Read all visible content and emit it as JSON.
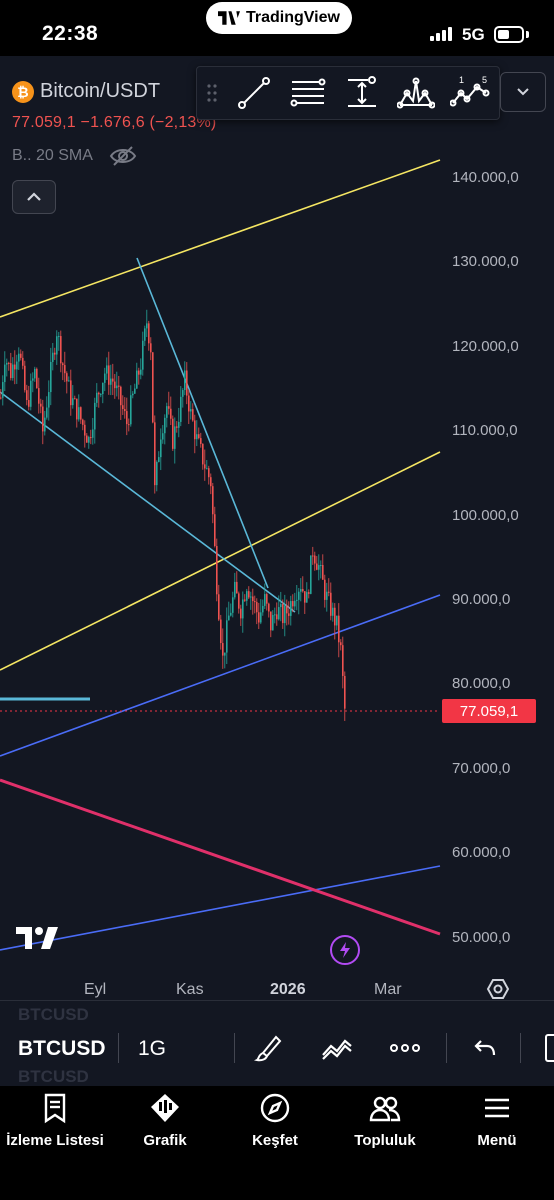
{
  "status_bar": {
    "time": "22:38",
    "source_app": "TradingView",
    "network": "5G"
  },
  "chart": {
    "symbol_title": "Bitcoin/USDT",
    "price_line": "77.059,1  −1.676,6 (−2,13%)",
    "indicator_label": "B.. 20 SMA",
    "last_price_tag": "77.059,1",
    "price_axis": [
      "140.000,0",
      "130.000,0",
      "120.000,0",
      "110.000,0",
      "100.000,0",
      "90.000,0",
      "80.000,0",
      "70.000,0",
      "60.000,0",
      "50.000,0"
    ],
    "time_axis": [
      "Eyl",
      "Kas",
      "2026",
      "Mar"
    ],
    "colors": {
      "background": "#131722",
      "up": "#26a69a",
      "down": "#ef5350",
      "channel": "#f5e663",
      "blue_line": "#4a6cf7",
      "cyan_line": "#5ab8d8",
      "magenta_line": "#e0306a",
      "price_tag": "#f23645"
    },
    "icons": [
      "bitcoin-icon",
      "eye-off-icon",
      "chevron-up-icon",
      "trend-line-icon",
      "parallel-channel-icon",
      "fib-icon",
      "pattern-icon",
      "elliott-wave-icon",
      "chevron-down-icon",
      "settings-icon",
      "replay-icon",
      "tradingview-logo"
    ]
  },
  "symbol_bar": {
    "symbol": "BTCUSD",
    "interval": "1G",
    "ghost_symbol": "BTCUSD"
  },
  "tab_bar": {
    "tabs": [
      {
        "label": "İzleme Listesi",
        "icon": "watchlist-icon"
      },
      {
        "label": "Grafik",
        "icon": "chart-icon"
      },
      {
        "label": "Keşfet",
        "icon": "compass-icon"
      },
      {
        "label": "Topluluk",
        "icon": "community-icon"
      },
      {
        "label": "Menü",
        "icon": "menu-icon"
      }
    ]
  }
}
